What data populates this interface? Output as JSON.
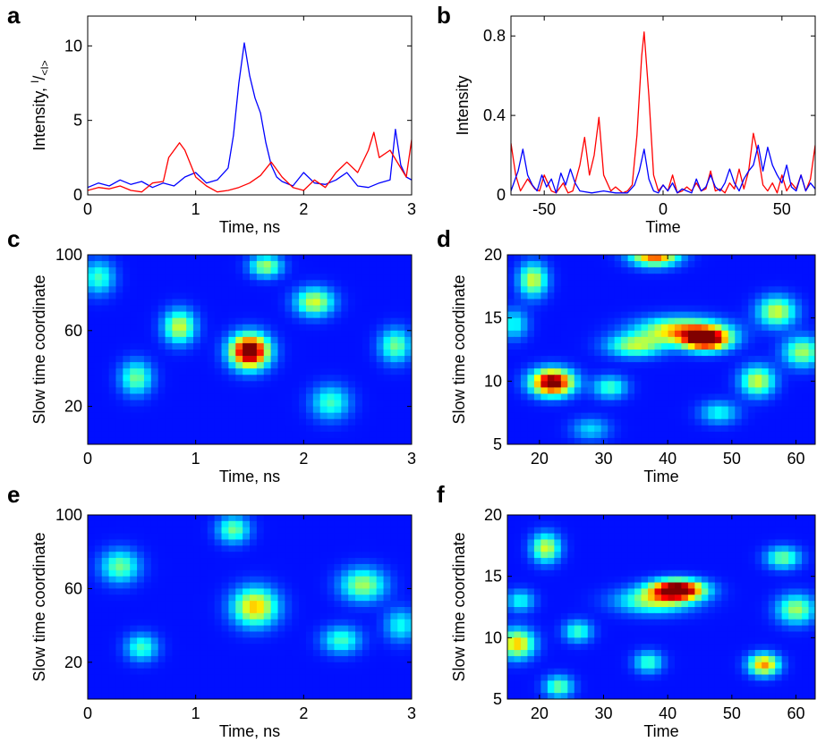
{
  "chart_data": [
    {
      "id": "a",
      "panel_label": "a",
      "type": "line",
      "xlabel": "Time, ns",
      "ylabel_main": "Intensity, ",
      "ylabel_frac_num": "I",
      "ylabel_frac_den": "<I>",
      "xlim": [
        0,
        3
      ],
      "ylim": [
        0,
        12
      ],
      "xticks": [
        0,
        1,
        2,
        3
      ],
      "yticks": [
        0,
        5,
        10
      ],
      "series": [
        {
          "color": "#0000ff",
          "x": [
            0,
            0.1,
            0.2,
            0.3,
            0.4,
            0.5,
            0.6,
            0.7,
            0.8,
            0.9,
            1.0,
            1.1,
            1.2,
            1.3,
            1.35,
            1.4,
            1.45,
            1.5,
            1.55,
            1.6,
            1.65,
            1.7,
            1.75,
            1.8,
            1.9,
            2.0,
            2.1,
            2.2,
            2.3,
            2.4,
            2.5,
            2.6,
            2.7,
            2.8,
            2.85,
            2.9,
            2.95,
            3.0
          ],
          "y": [
            0.5,
            0.8,
            0.6,
            1.0,
            0.7,
            0.9,
            0.5,
            0.8,
            0.6,
            1.2,
            1.5,
            0.8,
            1.0,
            1.8,
            4.0,
            7.5,
            10.2,
            8.0,
            6.5,
            5.5,
            3.5,
            2.0,
            1.2,
            0.9,
            0.6,
            1.5,
            0.8,
            0.7,
            1.0,
            1.5,
            0.6,
            0.5,
            0.8,
            1.0,
            4.4,
            2.0,
            1.2,
            1.0
          ]
        },
        {
          "color": "#ff0000",
          "x": [
            0,
            0.1,
            0.2,
            0.3,
            0.4,
            0.5,
            0.6,
            0.7,
            0.75,
            0.85,
            0.9,
            1.0,
            1.1,
            1.2,
            1.3,
            1.4,
            1.5,
            1.6,
            1.7,
            1.8,
            1.9,
            2.0,
            2.1,
            2.2,
            2.3,
            2.4,
            2.5,
            2.6,
            2.65,
            2.7,
            2.8,
            2.9,
            2.95,
            3.0
          ],
          "y": [
            0.3,
            0.5,
            0.4,
            0.6,
            0.3,
            0.2,
            0.8,
            0.9,
            2.5,
            3.5,
            3.0,
            1.2,
            0.6,
            0.2,
            0.3,
            0.5,
            0.8,
            1.3,
            2.2,
            1.2,
            0.5,
            0.3,
            1.0,
            0.5,
            1.5,
            2.2,
            1.5,
            3.0,
            4.2,
            2.5,
            3.0,
            1.8,
            1.2,
            3.7
          ]
        }
      ]
    },
    {
      "id": "b",
      "panel_label": "b",
      "type": "line",
      "xlabel": "Time",
      "ylabel": "Intensity",
      "xlim": [
        -64,
        64
      ],
      "ylim": [
        0,
        0.9
      ],
      "xticks": [
        -50,
        0,
        50
      ],
      "yticks": [
        0,
        0.4,
        0.8
      ],
      "series": [
        {
          "color": "#ff0000",
          "x": [
            -64,
            -62,
            -60,
            -57,
            -54,
            -52,
            -50,
            -47,
            -45,
            -42,
            -40,
            -38,
            -35,
            -33,
            -31,
            -29,
            -27,
            -25,
            -22,
            -20,
            -17,
            -15,
            -13,
            -11,
            -9,
            -8,
            -6,
            -4,
            -2,
            0,
            2,
            4,
            6,
            8,
            10,
            12,
            14,
            16,
            18,
            20,
            22,
            24,
            26,
            28,
            30,
            32,
            34,
            36,
            38,
            40,
            42,
            44,
            46,
            48,
            50,
            52,
            54,
            56,
            58,
            60,
            62,
            64
          ],
          "y": [
            0.26,
            0.1,
            0.02,
            0.08,
            0.03,
            0.02,
            0.1,
            0.02,
            0.01,
            0.06,
            0.01,
            0.02,
            0.15,
            0.29,
            0.1,
            0.2,
            0.39,
            0.1,
            0.02,
            0.04,
            0.01,
            0.02,
            0.05,
            0.3,
            0.7,
            0.82,
            0.5,
            0.1,
            0.02,
            0.05,
            0.02,
            0.1,
            0.01,
            0.02,
            0.04,
            0.02,
            0.06,
            0.02,
            0.03,
            0.12,
            0.02,
            0.03,
            0.01,
            0.06,
            0.03,
            0.13,
            0.03,
            0.12,
            0.31,
            0.2,
            0.05,
            0.02,
            0.06,
            0.01,
            0.1,
            0.02,
            0.06,
            0.03,
            0.1,
            0.02,
            0.08,
            0.25
          ]
        },
        {
          "color": "#0000ff",
          "x": [
            -64,
            -61,
            -59,
            -57,
            -55,
            -53,
            -51,
            -49,
            -47,
            -45,
            -43,
            -41,
            -39,
            -37,
            -35,
            -30,
            -25,
            -20,
            -15,
            -12,
            -10,
            -8,
            -6,
            -4,
            -2,
            0,
            2,
            4,
            6,
            8,
            10,
            12,
            14,
            16,
            18,
            20,
            22,
            24,
            26,
            28,
            30,
            32,
            34,
            36,
            38,
            40,
            42,
            44,
            46,
            48,
            50,
            52,
            54,
            56,
            58,
            60,
            62,
            64
          ],
          "y": [
            0.02,
            0.12,
            0.23,
            0.1,
            0.05,
            0.02,
            0.1,
            0.04,
            0.08,
            0.01,
            0.11,
            0.05,
            0.13,
            0.06,
            0.02,
            0.01,
            0.02,
            0.01,
            0.01,
            0.05,
            0.12,
            0.23,
            0.08,
            0.02,
            0.01,
            0.05,
            0.02,
            0.06,
            0.01,
            0.03,
            0.02,
            0.01,
            0.08,
            0.02,
            0.04,
            0.1,
            0.04,
            0.02,
            0.06,
            0.13,
            0.06,
            0.02,
            0.08,
            0.12,
            0.15,
            0.25,
            0.12,
            0.24,
            0.15,
            0.1,
            0.06,
            0.15,
            0.04,
            0.02,
            0.1,
            0.02,
            0.06,
            0.03
          ]
        }
      ]
    },
    {
      "id": "c",
      "panel_label": "c",
      "type": "heatmap",
      "xlabel": "Time, ns",
      "ylabel": "Slow time coordinate",
      "xlim": [
        0,
        3
      ],
      "ylim": [
        0,
        100
      ],
      "xticks": [
        0,
        1,
        2,
        3
      ],
      "yticks": [
        20,
        60,
        100
      ],
      "colormap": "jet",
      "blobs": [
        {
          "x": 1.5,
          "y": 49,
          "sx": 0.12,
          "sy": 6,
          "v": 1.0
        },
        {
          "x": 0.85,
          "y": 62,
          "sx": 0.1,
          "sy": 6,
          "v": 0.45
        },
        {
          "x": 2.1,
          "y": 75,
          "sx": 0.12,
          "sy": 5,
          "v": 0.45
        },
        {
          "x": 1.65,
          "y": 94,
          "sx": 0.1,
          "sy": 4,
          "v": 0.4
        },
        {
          "x": 0.45,
          "y": 35,
          "sx": 0.1,
          "sy": 6,
          "v": 0.35
        },
        {
          "x": 2.85,
          "y": 52,
          "sx": 0.1,
          "sy": 6,
          "v": 0.35
        },
        {
          "x": 2.25,
          "y": 22,
          "sx": 0.12,
          "sy": 6,
          "v": 0.3
        },
        {
          "x": 0.1,
          "y": 88,
          "sx": 0.1,
          "sy": 6,
          "v": 0.3
        }
      ]
    },
    {
      "id": "d",
      "panel_label": "d",
      "type": "heatmap",
      "xlabel": "Time",
      "ylabel": "Slow time coordinate",
      "xlim": [
        15,
        63
      ],
      "ylim": [
        5,
        20
      ],
      "xticks": [
        20,
        30,
        40,
        50,
        60
      ],
      "yticks": [
        5,
        10,
        15,
        20
      ],
      "colormap": "jet",
      "blobs": [
        {
          "x": 22,
          "y": 9.9,
          "sx": 2.2,
          "sy": 0.7,
          "v": 0.95
        },
        {
          "x": 46,
          "y": 13.3,
          "sx": 2.5,
          "sy": 0.6,
          "v": 0.9
        },
        {
          "x": 42,
          "y": 14.0,
          "sx": 4.5,
          "sy": 0.7,
          "v": 0.55
        },
        {
          "x": 35,
          "y": 12.8,
          "sx": 3,
          "sy": 0.6,
          "v": 0.4
        },
        {
          "x": 38,
          "y": 20,
          "sx": 2.5,
          "sy": 0.6,
          "v": 0.7
        },
        {
          "x": 19,
          "y": 18,
          "sx": 1.5,
          "sy": 0.9,
          "v": 0.45
        },
        {
          "x": 57,
          "y": 15.5,
          "sx": 2,
          "sy": 0.8,
          "v": 0.45
        },
        {
          "x": 61,
          "y": 12.3,
          "sx": 2,
          "sy": 0.8,
          "v": 0.4
        },
        {
          "x": 54,
          "y": 10.0,
          "sx": 1.8,
          "sy": 0.8,
          "v": 0.45
        },
        {
          "x": 31,
          "y": 9.5,
          "sx": 1.8,
          "sy": 0.6,
          "v": 0.3
        },
        {
          "x": 16,
          "y": 14.5,
          "sx": 1.5,
          "sy": 0.8,
          "v": 0.25
        },
        {
          "x": 48,
          "y": 7.5,
          "sx": 2,
          "sy": 0.6,
          "v": 0.25
        },
        {
          "x": 28,
          "y": 6.2,
          "sx": 2,
          "sy": 0.6,
          "v": 0.2
        }
      ]
    },
    {
      "id": "e",
      "panel_label": "e",
      "type": "heatmap",
      "xlabel": "Time, ns",
      "ylabel": "Slow time coordinate",
      "xlim": [
        0,
        3
      ],
      "ylim": [
        0,
        100
      ],
      "xticks": [
        0,
        1,
        2,
        3
      ],
      "yticks": [
        20,
        60,
        100
      ],
      "colormap": "jet",
      "blobs": [
        {
          "x": 1.55,
          "y": 50,
          "sx": 0.14,
          "sy": 7,
          "v": 0.55
        },
        {
          "x": 0.3,
          "y": 72,
          "sx": 0.12,
          "sy": 6,
          "v": 0.35
        },
        {
          "x": 2.55,
          "y": 62,
          "sx": 0.14,
          "sy": 6,
          "v": 0.4
        },
        {
          "x": 1.35,
          "y": 92,
          "sx": 0.1,
          "sy": 5,
          "v": 0.35
        },
        {
          "x": 0.5,
          "y": 28,
          "sx": 0.1,
          "sy": 5,
          "v": 0.3
        },
        {
          "x": 2.35,
          "y": 32,
          "sx": 0.12,
          "sy": 5,
          "v": 0.3
        },
        {
          "x": 2.9,
          "y": 40,
          "sx": 0.1,
          "sy": 6,
          "v": 0.25
        }
      ]
    },
    {
      "id": "f",
      "panel_label": "f",
      "type": "heatmap",
      "xlabel": "Time",
      "ylabel": "Slow time coordinate",
      "xlim": [
        15,
        63
      ],
      "ylim": [
        5,
        20
      ],
      "xticks": [
        20,
        30,
        40,
        50,
        60
      ],
      "yticks": [
        5,
        10,
        15,
        20
      ],
      "colormap": "jet",
      "blobs": [
        {
          "x": 41.5,
          "y": 13.9,
          "sx": 2.8,
          "sy": 0.55,
          "v": 1.0
        },
        {
          "x": 38,
          "y": 13.0,
          "sx": 4,
          "sy": 0.7,
          "v": 0.4
        },
        {
          "x": 16.5,
          "y": 9.5,
          "sx": 1.8,
          "sy": 0.8,
          "v": 0.55
        },
        {
          "x": 55,
          "y": 7.8,
          "sx": 1.6,
          "sy": 0.6,
          "v": 0.6
        },
        {
          "x": 21,
          "y": 17.3,
          "sx": 1.5,
          "sy": 0.8,
          "v": 0.45
        },
        {
          "x": 60,
          "y": 12.3,
          "sx": 2,
          "sy": 0.8,
          "v": 0.4
        },
        {
          "x": 58,
          "y": 16.5,
          "sx": 1.8,
          "sy": 0.6,
          "v": 0.35
        },
        {
          "x": 23,
          "y": 6.0,
          "sx": 1.5,
          "sy": 0.6,
          "v": 0.35
        },
        {
          "x": 37,
          "y": 8.0,
          "sx": 1.5,
          "sy": 0.6,
          "v": 0.3
        },
        {
          "x": 26,
          "y": 10.5,
          "sx": 1.5,
          "sy": 0.6,
          "v": 0.3
        },
        {
          "x": 17,
          "y": 13,
          "sx": 1.5,
          "sy": 0.6,
          "v": 0.25
        }
      ]
    }
  ]
}
